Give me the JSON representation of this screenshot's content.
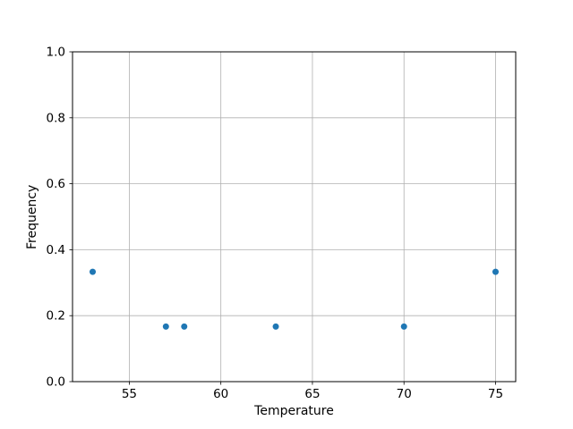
{
  "chart_data": {
    "type": "scatter",
    "title": "",
    "xlabel": "Temperature",
    "ylabel": "Frequency",
    "points": [
      {
        "x": 53,
        "y": 0.333
      },
      {
        "x": 57,
        "y": 0.167
      },
      {
        "x": 58,
        "y": 0.167
      },
      {
        "x": 63,
        "y": 0.167
      },
      {
        "x": 70,
        "y": 0.167
      },
      {
        "x": 75,
        "y": 0.333
      }
    ],
    "xlim": [
      51.9,
      76.1
    ],
    "ylim": [
      0.0,
      1.0
    ],
    "xticks": {
      "values": [
        55,
        60,
        65,
        70,
        75
      ],
      "labels": [
        "55",
        "60",
        "65",
        "70",
        "75"
      ]
    },
    "yticks": {
      "values": [
        0.0,
        0.2,
        0.4,
        0.6,
        0.8,
        1.0
      ],
      "labels": [
        "0.0",
        "0.2",
        "0.4",
        "0.6",
        "0.8",
        "1.0"
      ]
    },
    "grid": true,
    "legend": null,
    "marker_radius": 3.5,
    "colors": {
      "marker": "#1f77b4",
      "grid": "#b0b0b0",
      "spine": "#000000",
      "background": "#ffffff"
    }
  }
}
